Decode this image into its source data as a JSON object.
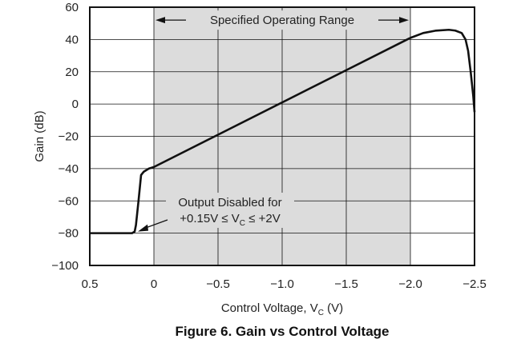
{
  "chart_data": {
    "type": "line",
    "caption": "Figure 6. Gain vs Control Voltage",
    "xlabel": {
      "main": "Control Voltage, V",
      "sub": "C",
      "unit": " (V)"
    },
    "ylabel": "Gain (dB)",
    "xlim": [
      0.5,
      -2.5
    ],
    "ylim": [
      -100,
      60
    ],
    "xticks": [
      0.5,
      0,
      -0.5,
      -1.0,
      -1.5,
      -2.0,
      -2.5
    ],
    "xtick_labels": [
      "0.5",
      "0",
      "−0.5",
      "−1.0",
      "−1.5",
      "−2.0",
      "−2.5"
    ],
    "yticks": [
      -100,
      -80,
      -60,
      -40,
      -20,
      0,
      20,
      40,
      60
    ],
    "ytick_labels": [
      "−100",
      "−80",
      "−60",
      "−40",
      "−20",
      "0",
      "20",
      "40",
      "60"
    ],
    "grid": true,
    "shaded_region": {
      "x": [
        0,
        -2.0
      ],
      "color": "#dcdcdc"
    },
    "annotations": {
      "range": "Specified Operating Range",
      "disabled_line1": "Output Disabled for",
      "disabled_line2_a": "+0.15V ≤ V",
      "disabled_line2_sub": "C",
      "disabled_line2_b": " ≤ +2V"
    },
    "series": [
      {
        "x": [
          0.5,
          0.4,
          0.3,
          0.2,
          0.17,
          0.15,
          0.14,
          0.12,
          0.1,
          0.08,
          0.06,
          0.04,
          0.02,
          0.0,
          -0.5,
          -1.0,
          -1.5,
          -1.9,
          -2.0,
          -2.1,
          -2.2,
          -2.3,
          -2.35,
          -2.4,
          -2.43,
          -2.45,
          -2.47,
          -2.49,
          -2.5
        ],
        "y": [
          -80,
          -80,
          -80,
          -80,
          -80,
          -79,
          -75,
          -60,
          -44,
          -42,
          -41,
          -40,
          -39.5,
          -39,
          -19,
          1,
          21,
          37,
          41,
          44,
          45.5,
          46,
          45.5,
          44,
          40,
          33,
          20,
          5,
          -5
        ]
      }
    ]
  }
}
